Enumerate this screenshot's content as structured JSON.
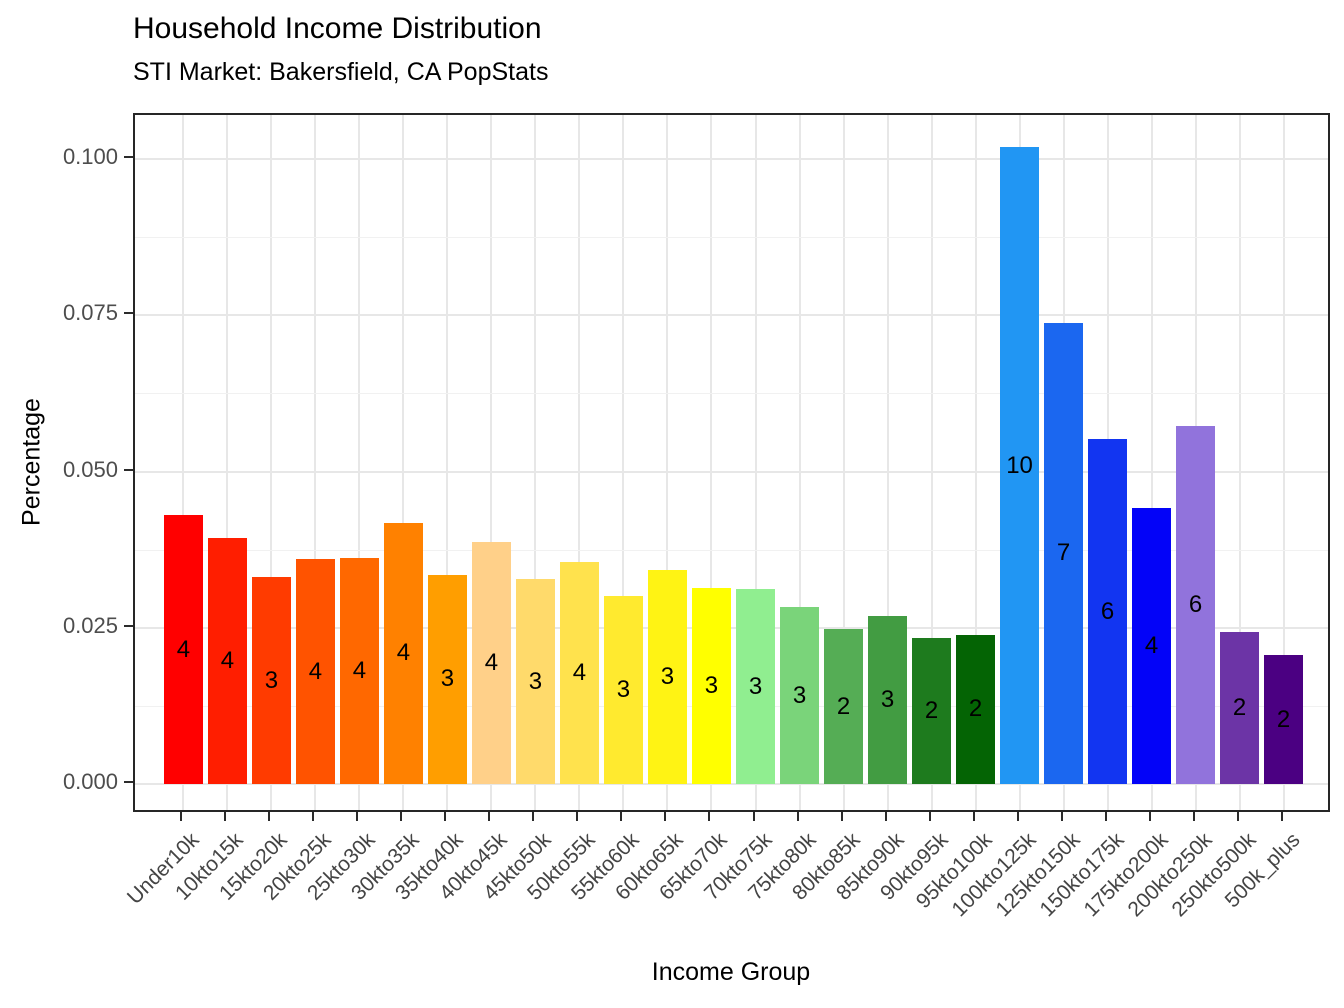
{
  "title": "Household Income Distribution",
  "subtitle": "STI Market: Bakersfield, CA PopStats",
  "chart_data": {
    "type": "bar",
    "title": "Household Income Distribution",
    "subtitle": "STI Market: Bakersfield, CA PopStats",
    "xlabel": "Income Group",
    "ylabel": "Percentage",
    "ylim": [
      0,
      0.105
    ],
    "grid": true,
    "legend": false,
    "y_major_ticks": [
      0,
      0.025,
      0.05,
      0.075,
      0.1
    ],
    "y_tick_labels": [
      "0.000",
      "0.025",
      "0.050",
      "0.075",
      "0.100"
    ],
    "y_minor_ticks": [
      0.0125,
      0.0375,
      0.0625,
      0.0875
    ],
    "categories": [
      "Under10k",
      "10kto15k",
      "15kto20k",
      "20kto25k",
      "25kto30k",
      "30kto35k",
      "35kto40k",
      "40kto45k",
      "45kto50k",
      "50kto55k",
      "55kto60k",
      "60kto65k",
      "65kto70k",
      "70kto75k",
      "75kto80k",
      "80kto85k",
      "85kto90k",
      "90kto95k",
      "95kto100k",
      "100kto125k",
      "125kto150k",
      "150kto175k",
      "175kto200k",
      "200kto250k",
      "250kto500k",
      "500k_plus"
    ],
    "values": [
      0.043,
      0.0394,
      0.0331,
      0.036,
      0.0361,
      0.0418,
      0.0335,
      0.0388,
      0.0328,
      0.0355,
      0.0301,
      0.0342,
      0.0314,
      0.0312,
      0.0283,
      0.0248,
      0.0269,
      0.0233,
      0.0239,
      0.1019,
      0.0738,
      0.0552,
      0.0442,
      0.0573,
      0.0243,
      0.0206
    ],
    "bar_labels": [
      "4",
      "4",
      "3",
      "4",
      "4",
      "4",
      "3",
      "4",
      "3",
      "4",
      "3",
      "3",
      "3",
      "3",
      "3",
      "2",
      "3",
      "2",
      "2",
      "10",
      "7",
      "6",
      "4",
      "6",
      "2",
      "2"
    ],
    "bar_colors": [
      "#FF0000",
      "#FF1E00",
      "#FF3B00",
      "#FF5300",
      "#FF6800",
      "#FF8100",
      "#FF9E00",
      "#FFD089",
      "#FFDA6B",
      "#FFE24D",
      "#FFEA2F",
      "#FFF314",
      "#FFFF00",
      "#90EE90",
      "#7AD47A",
      "#55AD55",
      "#429C42",
      "#1E7B1E",
      "#046404",
      "#2196F3",
      "#1B67F0",
      "#1235F1",
      "#0303F8",
      "#9173DC",
      "#6C34A6",
      "#4B0082"
    ]
  }
}
